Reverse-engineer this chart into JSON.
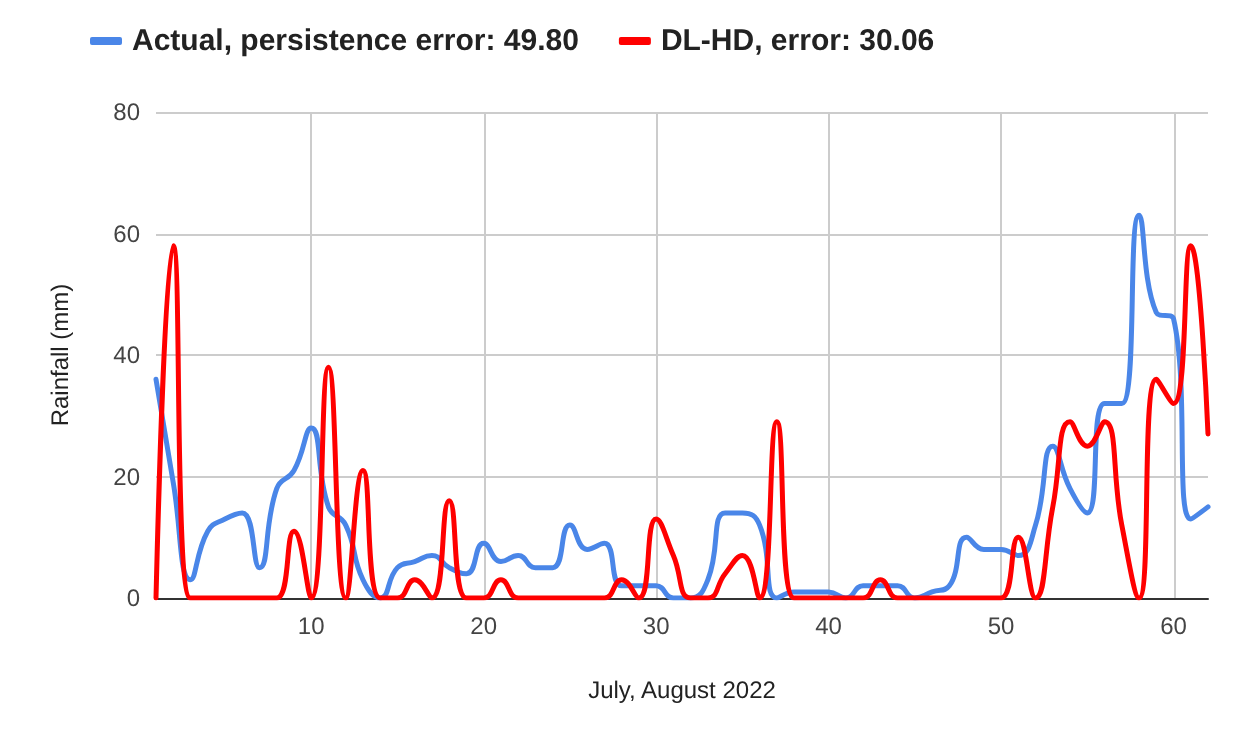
{
  "chart_data": {
    "type": "line",
    "xlabel": "July, August 2022",
    "ylabel": "Rainfall (mm)",
    "x": [
      1,
      2,
      3,
      4,
      5,
      6,
      7,
      8,
      9,
      10,
      11,
      12,
      13,
      14,
      15,
      16,
      17,
      18,
      19,
      20,
      21,
      22,
      23,
      24,
      25,
      26,
      27,
      28,
      29,
      30,
      31,
      32,
      33,
      34,
      35,
      36,
      37,
      38,
      39,
      40,
      41,
      42,
      43,
      44,
      45,
      46,
      47,
      48,
      49,
      50,
      51,
      52,
      53,
      54,
      55,
      56,
      57,
      58,
      59,
      60,
      61,
      62
    ],
    "series": [
      {
        "name": "Actual, persistence error: 49.80",
        "color": "#4a86e8",
        "values": [
          36,
          19,
          3,
          11,
          13,
          14,
          5,
          18,
          21,
          28,
          15,
          12,
          3,
          0,
          5,
          6,
          7,
          5,
          4,
          9,
          6,
          7,
          5,
          5,
          12,
          8,
          9,
          2,
          2,
          2,
          0,
          0,
          3,
          14,
          14,
          12,
          0,
          1,
          1,
          1,
          0,
          2,
          2,
          2,
          0,
          1,
          2,
          10,
          8,
          8,
          7,
          12,
          25,
          18,
          14,
          32,
          32,
          63,
          47,
          46,
          13,
          15
        ]
      },
      {
        "name": "DL-HD, error: 30.06",
        "color": "#ff0000",
        "values": [
          0,
          58,
          0,
          0,
          0,
          0,
          0,
          0,
          11,
          0,
          38,
          0,
          21,
          0,
          0,
          3,
          0,
          16,
          0,
          0,
          3,
          0,
          0,
          0,
          0,
          0,
          0,
          3,
          0,
          13,
          7,
          0,
          0,
          4,
          7,
          0,
          29,
          0,
          0,
          0,
          0,
          0,
          3,
          0,
          0,
          0,
          0,
          0,
          0,
          0,
          10,
          0,
          15,
          29,
          25,
          29,
          12,
          0,
          36,
          32,
          58,
          27
        ]
      }
    ],
    "xlim": [
      1,
      62
    ],
    "xticks": [
      10,
      20,
      30,
      40,
      50,
      60
    ],
    "ylim": [
      0,
      80
    ],
    "yticks": [
      0,
      20,
      40,
      60,
      80
    ],
    "grid": true,
    "legend": "top left",
    "marker": "none",
    "line_style": "solid"
  }
}
